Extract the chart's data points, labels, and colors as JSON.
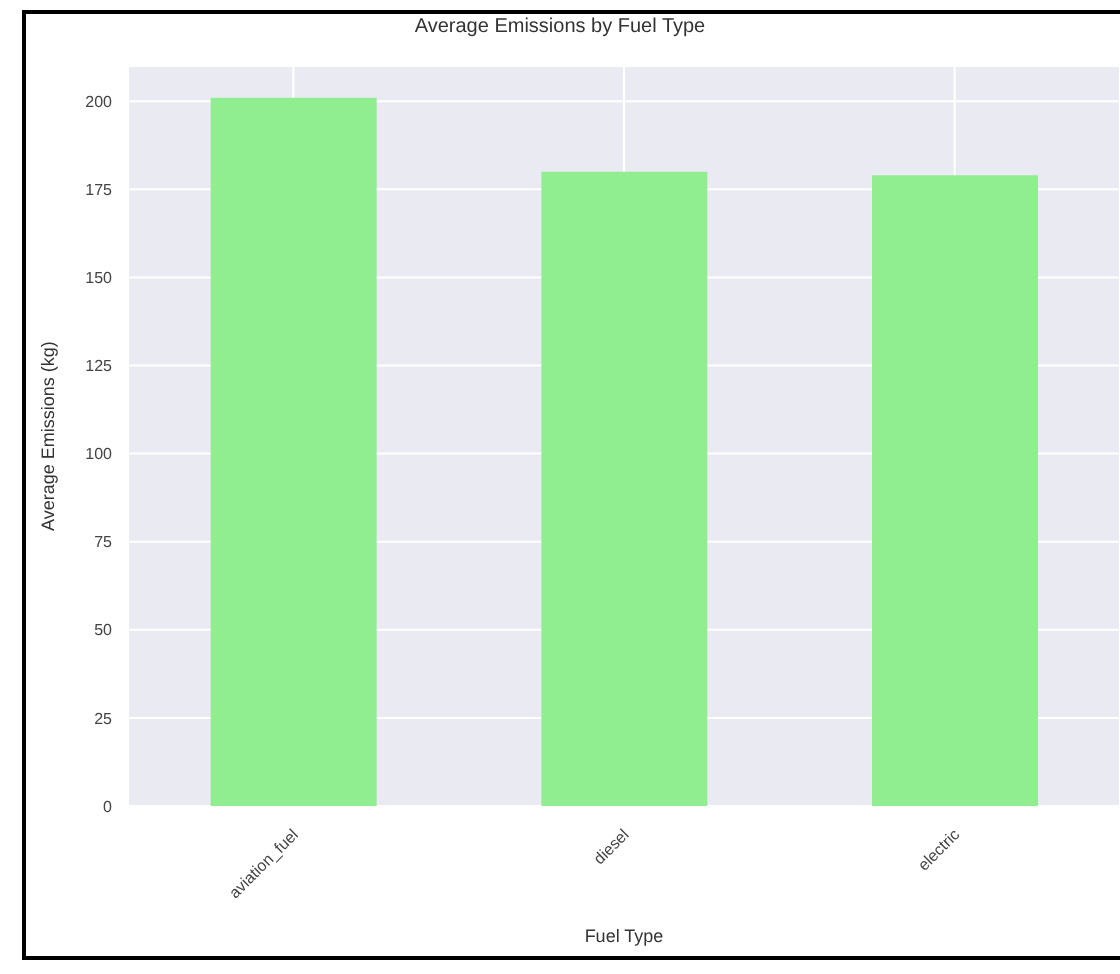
{
  "chart_data": {
    "type": "bar",
    "title": "Average Emissions by Fuel Type",
    "xlabel": "Fuel Type",
    "ylabel": "Average Emissions (kg)",
    "categories": [
      "aviation_fuel",
      "diesel",
      "electric"
    ],
    "values": [
      201,
      180,
      179
    ],
    "color": "#90ee90",
    "ylim": [
      0,
      210
    ],
    "yticks": [
      0,
      25,
      50,
      75,
      100,
      125,
      150,
      175,
      200
    ],
    "grid": true
  }
}
